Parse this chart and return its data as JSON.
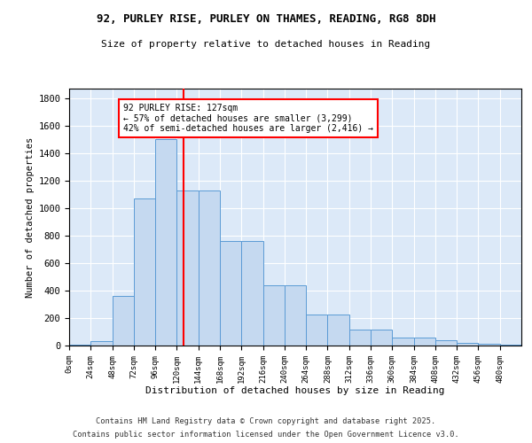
{
  "title1": "92, PURLEY RISE, PURLEY ON THAMES, READING, RG8 8DH",
  "title2": "Size of property relative to detached houses in Reading",
  "xlabel": "Distribution of detached houses by size in Reading",
  "ylabel": "Number of detached properties",
  "bar_values": [
    5,
    30,
    360,
    1070,
    1500,
    1130,
    1130,
    760,
    760,
    440,
    440,
    225,
    225,
    115,
    115,
    55,
    55,
    40,
    20,
    15,
    5
  ],
  "bin_edges": [
    0,
    24,
    48,
    72,
    96,
    120,
    144,
    168,
    192,
    216,
    240,
    264,
    288,
    312,
    336,
    360,
    384,
    408,
    432,
    456,
    480,
    504
  ],
  "bar_color": "#c5d9f0",
  "bar_edge_color": "#5b9bd5",
  "vline_x": 127,
  "vline_color": "red",
  "annotation_text": "92 PURLEY RISE: 127sqm\n← 57% of detached houses are smaller (3,299)\n42% of semi-detached houses are larger (2,416) →",
  "annotation_box_color": "white",
  "annotation_box_edge": "red",
  "ylim": [
    0,
    1870
  ],
  "xlim": [
    0,
    504
  ],
  "xtick_labels": [
    "0sqm",
    "24sqm",
    "48sqm",
    "72sqm",
    "96sqm",
    "120sqm",
    "144sqm",
    "168sqm",
    "192sqm",
    "216sqm",
    "240sqm",
    "264sqm",
    "288sqm",
    "312sqm",
    "336sqm",
    "360sqm",
    "384sqm",
    "408sqm",
    "432sqm",
    "456sqm",
    "480sqm"
  ],
  "xtick_positions": [
    0,
    24,
    48,
    72,
    96,
    120,
    144,
    168,
    192,
    216,
    240,
    264,
    288,
    312,
    336,
    360,
    384,
    408,
    432,
    456,
    480
  ],
  "ytick_positions": [
    0,
    200,
    400,
    600,
    800,
    1000,
    1200,
    1400,
    1600,
    1800
  ],
  "bg_color": "#dce9f8",
  "footer1": "Contains HM Land Registry data © Crown copyright and database right 2025.",
  "footer2": "Contains public sector information licensed under the Open Government Licence v3.0."
}
